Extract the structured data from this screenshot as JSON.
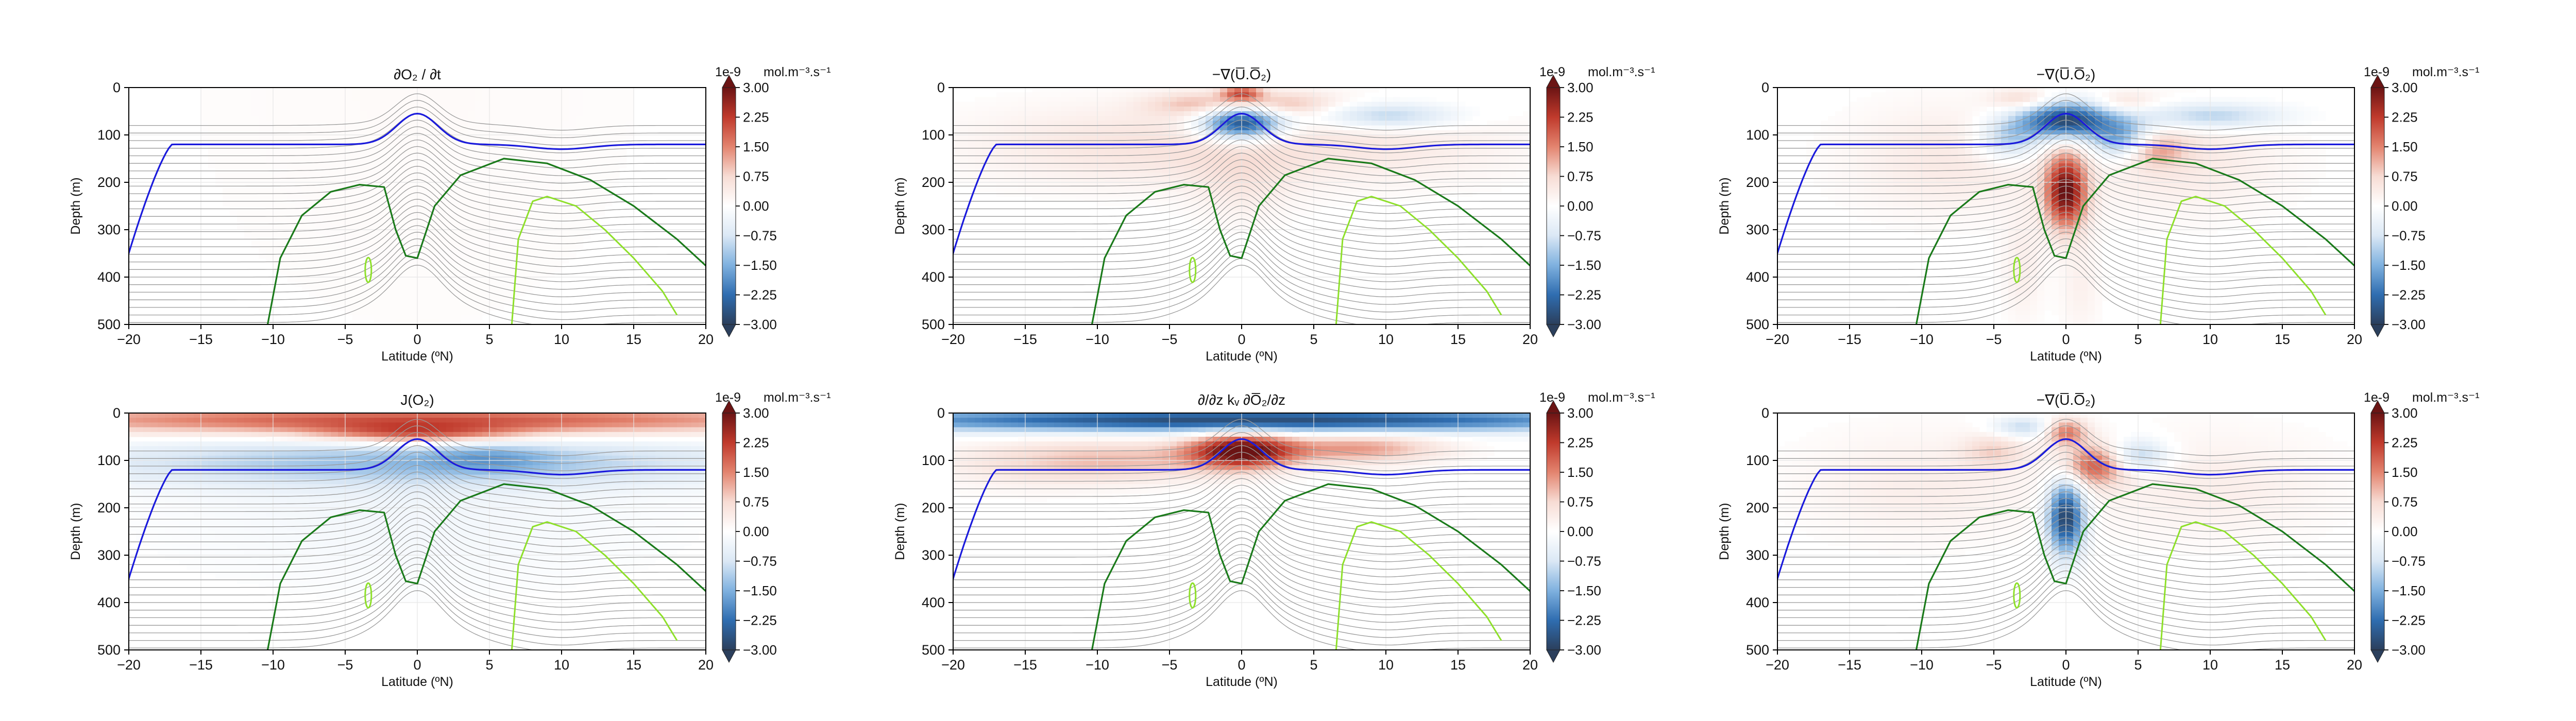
{
  "figure": {
    "colorbar": {
      "exponent": "1e-9",
      "unit": "mol.m⁻³.s⁻¹",
      "ticks": [
        3.0,
        2.25,
        1.5,
        0.75,
        0.0,
        -0.75,
        -1.5,
        -2.25,
        -3.0
      ],
      "tick_labels": [
        "3.00",
        "2.25",
        "1.50",
        "0.75",
        "0.00",
        "−0.75",
        "−1.50",
        "−2.25",
        "−3.00"
      ],
      "range": [
        -3,
        3
      ],
      "colors": [
        "#2b3f5c",
        "#2f6db0",
        "#7fb1df",
        "#dbe8f5",
        "#ffffff",
        "#f7dcd4",
        "#e3846f",
        "#c03a2c",
        "#6b1414"
      ]
    },
    "contour_colors": {
      "grey": "#9a9a9a",
      "blue": "#1a1adc",
      "green": "#1a7a1a",
      "lightgreen": "#8ee02a"
    }
  },
  "chart_data": [
    {
      "type": "heatmap",
      "panel": "a",
      "title": "∂O₂ / ∂t",
      "xlabel": "Latitude (ºN)",
      "ylabel": "Depth (m)",
      "xlim": [
        -20,
        20
      ],
      "ylim": [
        0,
        500
      ],
      "y_inverted": true,
      "xticks": [
        -20,
        -15,
        -10,
        -5,
        0,
        5,
        10,
        15,
        20
      ],
      "yticks": [
        0,
        100,
        200,
        300,
        400,
        500
      ],
      "xtick_labels": [
        "−20",
        "−15",
        "−10",
        "−5",
        "0",
        "5",
        "10",
        "15",
        "20"
      ],
      "ytick_labels": [
        "0",
        "100",
        "200",
        "300",
        "400",
        "500"
      ],
      "grid": true,
      "color_range": [
        -3e-09,
        3e-09
      ],
      "features": [
        {
          "lat": 0,
          "depth": 0,
          "value": 0.1,
          "sx": 15,
          "sy": 500
        }
      ]
    },
    {
      "type": "heatmap",
      "panel": "b",
      "title": "−∇(U̅.O̅₂)",
      "xlabel": "Latitude (ºN)",
      "ylabel": "Depth (m)",
      "xlim": [
        -20,
        20
      ],
      "ylim": [
        0,
        500
      ],
      "y_inverted": true,
      "xticks": [
        -20,
        -15,
        -10,
        -5,
        0,
        5,
        10,
        15,
        20
      ],
      "yticks": [
        0,
        100,
        200,
        300,
        400,
        500
      ],
      "xtick_labels": [
        "−20",
        "−15",
        "−10",
        "−5",
        "0",
        "5",
        "10",
        "15",
        "20"
      ],
      "ytick_labels": [
        "0",
        "100",
        "200",
        "300",
        "400",
        "500"
      ],
      "grid": true,
      "color_range": [
        -3e-09,
        3e-09
      ],
      "features": [
        {
          "lat": 0,
          "depth": 75,
          "value": -3.0,
          "sx": 2.0,
          "sy": 25
        },
        {
          "lat": 0,
          "depth": 12,
          "value": 1.8,
          "sx": 1.0,
          "sy": 12
        },
        {
          "lat": -3,
          "depth": 35,
          "value": 0.9,
          "sx": 2.5,
          "sy": 18
        },
        {
          "lat": 3,
          "depth": 35,
          "value": 0.9,
          "sx": 2.5,
          "sy": 18
        },
        {
          "lat": 10,
          "depth": 60,
          "value": -1.2,
          "sx": 3.5,
          "sy": 20
        },
        {
          "lat": -8,
          "depth": 120,
          "value": 0.5,
          "sx": 8,
          "sy": 60
        },
        {
          "lat": 8,
          "depth": 120,
          "value": 0.45,
          "sx": 8,
          "sy": 60
        },
        {
          "lat": 0,
          "depth": 200,
          "value": 0.35,
          "sx": 2.5,
          "sy": 60
        }
      ]
    },
    {
      "type": "heatmap",
      "panel": "c",
      "title": "−∇(U̅.O̅₂)",
      "xlabel": "Latitude (ºN)",
      "ylabel": "Depth (m)",
      "xlim": [
        -20,
        20
      ],
      "ylim": [
        0,
        500
      ],
      "y_inverted": true,
      "xticks": [
        -20,
        -15,
        -10,
        -5,
        0,
        5,
        10,
        15,
        20
      ],
      "yticks": [
        0,
        100,
        200,
        300,
        400,
        500
      ],
      "xtick_labels": [
        "−20",
        "−15",
        "−10",
        "−5",
        "0",
        "5",
        "10",
        "15",
        "20"
      ],
      "ytick_labels": [
        "0",
        "100",
        "200",
        "300",
        "400",
        "500"
      ],
      "grid": true,
      "color_range": [
        -3e-09,
        3e-09
      ],
      "features": [
        {
          "lat": 0,
          "depth": 70,
          "value": -3.0,
          "sx": 2.3,
          "sy": 28
        },
        {
          "lat": 0,
          "depth": 220,
          "value": 3.0,
          "sx": 1.0,
          "sy": 55
        },
        {
          "lat": 4,
          "depth": 110,
          "value": -1.8,
          "sx": 1.5,
          "sy": 30
        },
        {
          "lat": -4,
          "depth": 110,
          "value": -1.2,
          "sx": 1.5,
          "sy": 30
        },
        {
          "lat": 6,
          "depth": 130,
          "value": 1.2,
          "sx": 1.5,
          "sy": 25
        },
        {
          "lat": 10,
          "depth": 60,
          "value": -1.2,
          "sx": 3.5,
          "sy": 20
        },
        {
          "lat": -3,
          "depth": 25,
          "value": 0.8,
          "sx": 1.5,
          "sy": 15
        },
        {
          "lat": 4,
          "depth": 30,
          "value": 0.6,
          "sx": 1.5,
          "sy": 15
        },
        {
          "lat": -8,
          "depth": 150,
          "value": 0.45,
          "sx": 5,
          "sy": 80
        },
        {
          "lat": 8,
          "depth": 150,
          "value": 0.45,
          "sx": 5,
          "sy": 80
        },
        {
          "lat": -3,
          "depth": 380,
          "value": 0.35,
          "sx": 1.0,
          "sy": 80
        },
        {
          "lat": 1,
          "depth": 420,
          "value": 0.3,
          "sx": 1.0,
          "sy": 70
        }
      ]
    },
    {
      "type": "heatmap",
      "panel": "d",
      "title": "J(O₂)",
      "xlabel": "Latitude (ºN)",
      "ylabel": "Depth (m)",
      "xlim": [
        -20,
        20
      ],
      "ylim": [
        0,
        500
      ],
      "y_inverted": true,
      "xticks": [
        -20,
        -15,
        -10,
        -5,
        0,
        5,
        10,
        15,
        20
      ],
      "yticks": [
        0,
        100,
        200,
        300,
        400,
        500
      ],
      "xtick_labels": [
        "−20",
        "−15",
        "−10",
        "−5",
        "0",
        "5",
        "10",
        "15",
        "20"
      ],
      "ytick_labels": [
        "0",
        "100",
        "200",
        "300",
        "400",
        "500"
      ],
      "grid": true,
      "color_range": [
        -3e-09,
        3e-09
      ],
      "features": [
        {
          "lat": 0,
          "depth": 15,
          "value": 2.0,
          "sx": 22,
          "sy": 22
        },
        {
          "lat": 0,
          "depth": 45,
          "value": 1.5,
          "sx": 5,
          "sy": 15
        },
        {
          "lat": 0,
          "depth": 105,
          "value": -1.2,
          "sx": 17,
          "sy": 35
        },
        {
          "lat": 5,
          "depth": 95,
          "value": -0.6,
          "sx": 3,
          "sy": 20
        },
        {
          "lat": 0,
          "depth": 210,
          "value": -0.25,
          "sx": 12,
          "sy": 110
        }
      ]
    },
    {
      "type": "heatmap",
      "panel": "e",
      "title": "∂/∂z kᵥ ∂O̅₂/∂z",
      "xlabel": "Latitude (ºN)",
      "ylabel": "Depth (m)",
      "xlim": [
        -20,
        20
      ],
      "ylim": [
        0,
        500
      ],
      "y_inverted": true,
      "xticks": [
        -20,
        -15,
        -10,
        -5,
        0,
        5,
        10,
        15,
        20
      ],
      "yticks": [
        0,
        100,
        200,
        300,
        400,
        500
      ],
      "xtick_labels": [
        "−20",
        "−15",
        "−10",
        "−5",
        "0",
        "5",
        "10",
        "15",
        "20"
      ],
      "ytick_labels": [
        "0",
        "100",
        "200",
        "300",
        "400",
        "500"
      ],
      "grid": true,
      "color_range": [
        -3e-09,
        3e-09
      ],
      "features": [
        {
          "lat": 0,
          "depth": 15,
          "value": -2.8,
          "sx": 22,
          "sy": 18
        },
        {
          "lat": 0,
          "depth": 80,
          "value": 3.0,
          "sx": 2.5,
          "sy": 25
        },
        {
          "lat": 8,
          "depth": 75,
          "value": 1.3,
          "sx": 4,
          "sy": 22
        },
        {
          "lat": -8,
          "depth": 100,
          "value": 0.9,
          "sx": 6,
          "sy": 30
        },
        {
          "lat": -15,
          "depth": 110,
          "value": 0.3,
          "sx": 5,
          "sy": 40
        }
      ]
    },
    {
      "type": "heatmap",
      "panel": "f",
      "title": "−∇(U̅.O̅₂)",
      "xlabel": "Latitude (ºN)",
      "ylabel": "Depth (m)",
      "xlim": [
        -20,
        20
      ],
      "ylim": [
        0,
        500
      ],
      "y_inverted": true,
      "xticks": [
        -20,
        -15,
        -10,
        -5,
        0,
        5,
        10,
        15,
        20
      ],
      "yticks": [
        0,
        100,
        200,
        300,
        400,
        500
      ],
      "xtick_labels": [
        "−20",
        "−15",
        "−10",
        "−5",
        "0",
        "5",
        "10",
        "15",
        "20"
      ],
      "ytick_labels": [
        "0",
        "100",
        "200",
        "300",
        "400",
        "500"
      ],
      "grid": true,
      "color_range": [
        -3e-09,
        3e-09
      ],
      "features": [
        {
          "lat": 0,
          "depth": 220,
          "value": -3.0,
          "sx": 0.9,
          "sy": 55
        },
        {
          "lat": 0,
          "depth": 40,
          "value": 1.6,
          "sx": 1.0,
          "sy": 20
        },
        {
          "lat": 2,
          "depth": 110,
          "value": 1.8,
          "sx": 1.5,
          "sy": 30
        },
        {
          "lat": 5,
          "depth": 90,
          "value": -1.2,
          "sx": 1.5,
          "sy": 25
        },
        {
          "lat": -3,
          "depth": 30,
          "value": -1.0,
          "sx": 1.5,
          "sy": 15
        },
        {
          "lat": -5,
          "depth": 80,
          "value": 0.7,
          "sx": 1.5,
          "sy": 25
        },
        {
          "lat": -10,
          "depth": 150,
          "value": 0.35,
          "sx": 6,
          "sy": 80
        },
        {
          "lat": 10,
          "depth": 150,
          "value": 0.35,
          "sx": 6,
          "sy": 80
        }
      ]
    }
  ]
}
